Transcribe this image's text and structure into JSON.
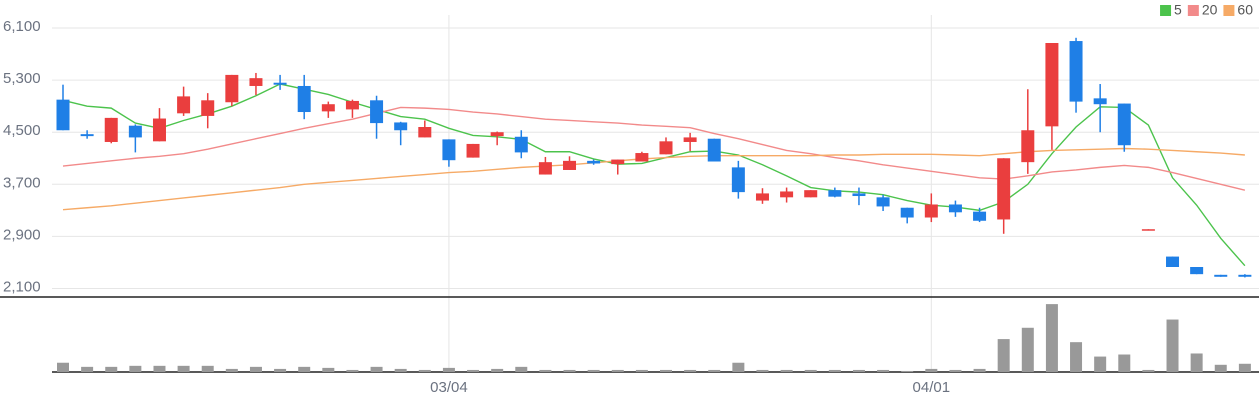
{
  "chart_data": {
    "type": "candlestick",
    "categories": [
      null,
      null,
      null,
      null,
      null,
      null,
      null,
      null,
      null,
      null,
      null,
      null,
      null,
      null,
      null,
      null,
      "03/04",
      null,
      null,
      null,
      null,
      null,
      null,
      null,
      null,
      null,
      null,
      null,
      null,
      null,
      null,
      null,
      null,
      null,
      null,
      null,
      "04/01",
      null,
      null,
      null,
      null,
      null,
      null,
      null,
      null,
      null,
      null,
      null,
      null,
      null
    ],
    "open": [
      5000,
      4470,
      4350,
      4600,
      4360,
      4790,
      4750,
      4960,
      5210,
      5260,
      5210,
      4820,
      4850,
      4990,
      4650,
      4420,
      4390,
      4110,
      4440,
      4430,
      3850,
      3920,
      4060,
      4010,
      4050,
      4160,
      4350,
      4400,
      3960,
      3450,
      3500,
      3500,
      3610,
      3560,
      3500,
      3340,
      3190,
      3390,
      3280,
      3160,
      4040,
      4590,
      5900,
      5020,
      4940,
      2990,
      2590,
      2430,
      2310,
      2310
    ],
    "high": [
      5230,
      4530,
      4720,
      4620,
      4870,
      5200,
      5100,
      5380,
      5410,
      5380,
      5380,
      4970,
      5000,
      5060,
      4660,
      4680,
      4390,
      4320,
      4510,
      4530,
      4120,
      4130,
      4080,
      4080,
      4200,
      4420,
      4490,
      4400,
      4060,
      3640,
      3650,
      3610,
      3650,
      3650,
      3540,
      3340,
      3560,
      3450,
      3340,
      4100,
      5160,
      5870,
      5950,
      5240,
      4940,
      3010,
      2590,
      2430,
      2310,
      2320
    ],
    "low": [
      4530,
      4400,
      4330,
      4190,
      4360,
      4750,
      4560,
      4900,
      5070,
      5150,
      4700,
      4720,
      4720,
      4400,
      4300,
      4420,
      3970,
      4110,
      4300,
      4100,
      3850,
      3920,
      4000,
      3850,
      4050,
      4160,
      4210,
      4050,
      3480,
      3400,
      3420,
      3500,
      3500,
      3380,
      3290,
      3100,
      3120,
      3200,
      3120,
      2940,
      3860,
      4230,
      4800,
      4500,
      4200,
      2990,
      2430,
      2320,
      2280,
      2270
    ],
    "close": [
      4530,
      4440,
      4720,
      4420,
      4710,
      5050,
      4990,
      5380,
      5330,
      5230,
      4810,
      4930,
      4980,
      4640,
      4530,
      4580,
      4070,
      4320,
      4500,
      4190,
      4040,
      4060,
      4020,
      4080,
      4180,
      4360,
      4420,
      4050,
      3580,
      3560,
      3590,
      3610,
      3510,
      3520,
      3360,
      3190,
      3390,
      3270,
      3140,
      4100,
      4530,
      5870,
      4970,
      4930,
      4300,
      3010,
      2430,
      2320,
      2280,
      2280
    ],
    "up_color": "#ea3e3e",
    "down_color": "#1f7fe6",
    "series": [
      {
        "name": "5",
        "color": "#4cc34c",
        "values": [
          4990,
          4900,
          4870,
          4640,
          4560,
          4680,
          4780,
          4900,
          5060,
          5240,
          5160,
          5080,
          4960,
          4850,
          4740,
          4700,
          4560,
          4450,
          4430,
          4390,
          4200,
          4200,
          4090,
          4010,
          4020,
          4110,
          4200,
          4210,
          4150,
          4000,
          3830,
          3650,
          3600,
          3580,
          3540,
          3450,
          3380,
          3350,
          3300,
          3430,
          3700,
          4170,
          4580,
          4890,
          4880,
          4610,
          3800,
          3380,
          2870,
          2450
        ]
      },
      {
        "name": "20",
        "color": "#f28a8a",
        "values": [
          3980,
          4020,
          4060,
          4100,
          4130,
          4170,
          4240,
          4320,
          4400,
          4480,
          4560,
          4630,
          4700,
          4790,
          4880,
          4870,
          4850,
          4810,
          4780,
          4740,
          4700,
          4680,
          4660,
          4640,
          4610,
          4590,
          4570,
          4480,
          4400,
          4310,
          4220,
          4170,
          4110,
          4060,
          4000,
          3950,
          3900,
          3850,
          3800,
          3780,
          3830,
          3890,
          3920,
          3960,
          3990,
          3960,
          3880,
          3790,
          3700,
          3610
        ]
      },
      {
        "name": "60",
        "color": "#f6aa66",
        "values": [
          3310,
          3340,
          3370,
          3410,
          3450,
          3490,
          3530,
          3570,
          3610,
          3650,
          3700,
          3730,
          3760,
          3790,
          3820,
          3850,
          3880,
          3900,
          3930,
          3960,
          3980,
          4000,
          4030,
          4060,
          4090,
          4110,
          4130,
          4140,
          4140,
          4140,
          4140,
          4140,
          4150,
          4150,
          4160,
          4160,
          4160,
          4150,
          4140,
          4170,
          4200,
          4220,
          4230,
          4240,
          4250,
          4240,
          4220,
          4200,
          4180,
          4150
        ]
      }
    ],
    "ylim": [
      2000,
      6300
    ],
    "yticks": [
      {
        "value": 2100,
        "label": "2,100"
      },
      {
        "value": 2900,
        "label": "2,900"
      },
      {
        "value": 3700,
        "label": "3,700"
      },
      {
        "value": 4500,
        "label": "4,500"
      },
      {
        "value": 5300,
        "label": "5,300"
      },
      {
        "value": 6100,
        "label": "6,100"
      }
    ],
    "grid": true,
    "legend": "top-right",
    "volume": {
      "color": "#999999",
      "values": [
        9,
        5,
        5,
        6,
        6,
        6,
        6,
        3,
        5,
        3,
        5,
        4,
        2,
        5,
        3,
        2,
        4,
        2,
        3,
        5,
        2,
        2,
        2,
        2,
        2,
        2,
        2,
        2,
        9,
        2,
        2,
        2,
        2,
        2,
        2,
        1,
        3,
        2,
        3,
        32,
        43,
        66,
        29,
        15,
        17,
        2,
        51,
        18,
        7,
        8
      ],
      "ylim": [
        0,
        70
      ]
    }
  }
}
